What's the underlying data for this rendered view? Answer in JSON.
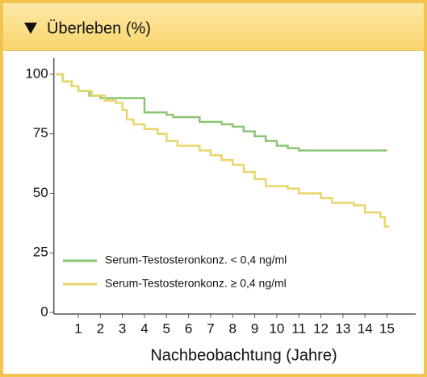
{
  "chart_data": {
    "type": "line",
    "title": "Überleben (%)",
    "xlabel": "Nachbeobachtung (Jahre)",
    "xlim": [
      0,
      16.3
    ],
    "ylim": [
      0,
      100
    ],
    "xticks": [
      1,
      2,
      3,
      4,
      5,
      6,
      7,
      8,
      9,
      10,
      11,
      12,
      13,
      14,
      15
    ],
    "yticks": [
      0,
      25,
      50,
      75,
      100
    ],
    "legend": "lower left",
    "series": [
      {
        "name": "Serum-Testosteronkonz. < 0,4 ng/ml",
        "color": "#8cc474",
        "x": [
          0,
          0.3,
          0.7,
          1,
          1.5,
          2,
          4,
          5,
          5.3,
          6.5,
          7.5,
          8,
          8.5,
          9,
          9.5,
          10,
          10.5,
          11,
          15
        ],
        "values": [
          100,
          97,
          95,
          93,
          91,
          90,
          84,
          83,
          82,
          80,
          79,
          78,
          76,
          74,
          72,
          70,
          69,
          68,
          68
        ]
      },
      {
        "name": "Serum-Testosteronkonz. ≥ 0,4 ng/ml",
        "color": "#e8d66a",
        "x": [
          0,
          0.3,
          0.7,
          1,
          1.6,
          2.2,
          2.7,
          3,
          3.2,
          3.5,
          4,
          4.6,
          5,
          5.5,
          6.5,
          7,
          7.5,
          8,
          8.5,
          9,
          9.5,
          10.5,
          11,
          12,
          12.5,
          13.5,
          14,
          14.7,
          14.9,
          15.1
        ],
        "values": [
          100,
          97,
          95,
          93,
          91,
          89,
          88,
          85,
          81,
          79,
          77,
          75,
          72,
          70,
          68,
          66,
          64,
          62,
          59,
          56,
          53,
          52,
          50,
          48,
          46,
          45,
          42,
          40,
          36,
          36
        ]
      }
    ]
  }
}
